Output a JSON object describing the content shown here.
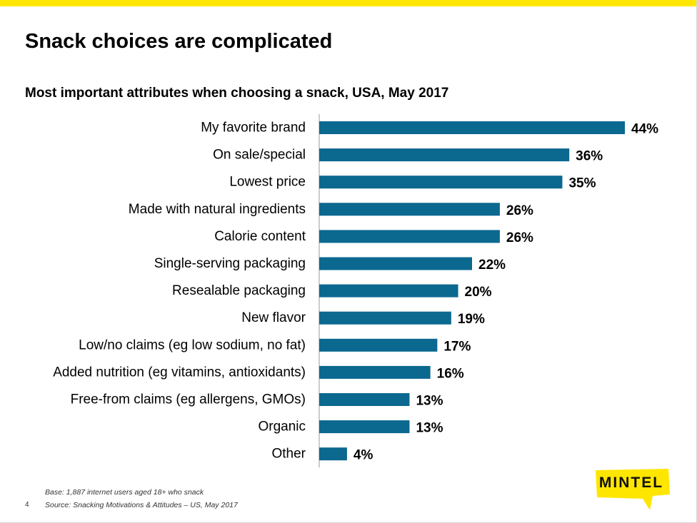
{
  "title": "Snack choices are complicated",
  "footnotes": {
    "base": "Base: 1,887 internet users aged 18+ who snack",
    "source": "Source: Snacking  Motivations & Attitudes – US, May 2017",
    "page_number": "4"
  },
  "logo": {
    "text": "MINTEL",
    "color": "#ffe600"
  },
  "colors": {
    "bar": "#0b688f",
    "accent": "#ffe600",
    "axis": "#999999"
  },
  "chart_data": {
    "type": "bar",
    "orientation": "horizontal",
    "title": "Most important attributes when choosing a snack, USA, May 2017",
    "xlabel": "",
    "ylabel": "",
    "xlim": [
      0,
      44
    ],
    "grid": false,
    "legend": "none",
    "categories": [
      "My favorite brand",
      "On sale/special",
      "Lowest price",
      "Made with natural ingredients",
      "Calorie content",
      "Single-serving packaging",
      "Resealable packaging",
      "New flavor",
      "Low/no claims (eg low sodium, no fat)",
      "Added nutrition (eg vitamins, antioxidants)",
      "Free-from claims (eg allergens, GMOs)",
      "Organic",
      "Other"
    ],
    "values": [
      44,
      36,
      35,
      26,
      26,
      22,
      20,
      19,
      17,
      16,
      13,
      13,
      4
    ],
    "value_labels": [
      "44%",
      "36%",
      "35%",
      "26%",
      "26%",
      "22%",
      "20%",
      "19%",
      "17%",
      "16%",
      "13%",
      "13%",
      "4%"
    ]
  }
}
